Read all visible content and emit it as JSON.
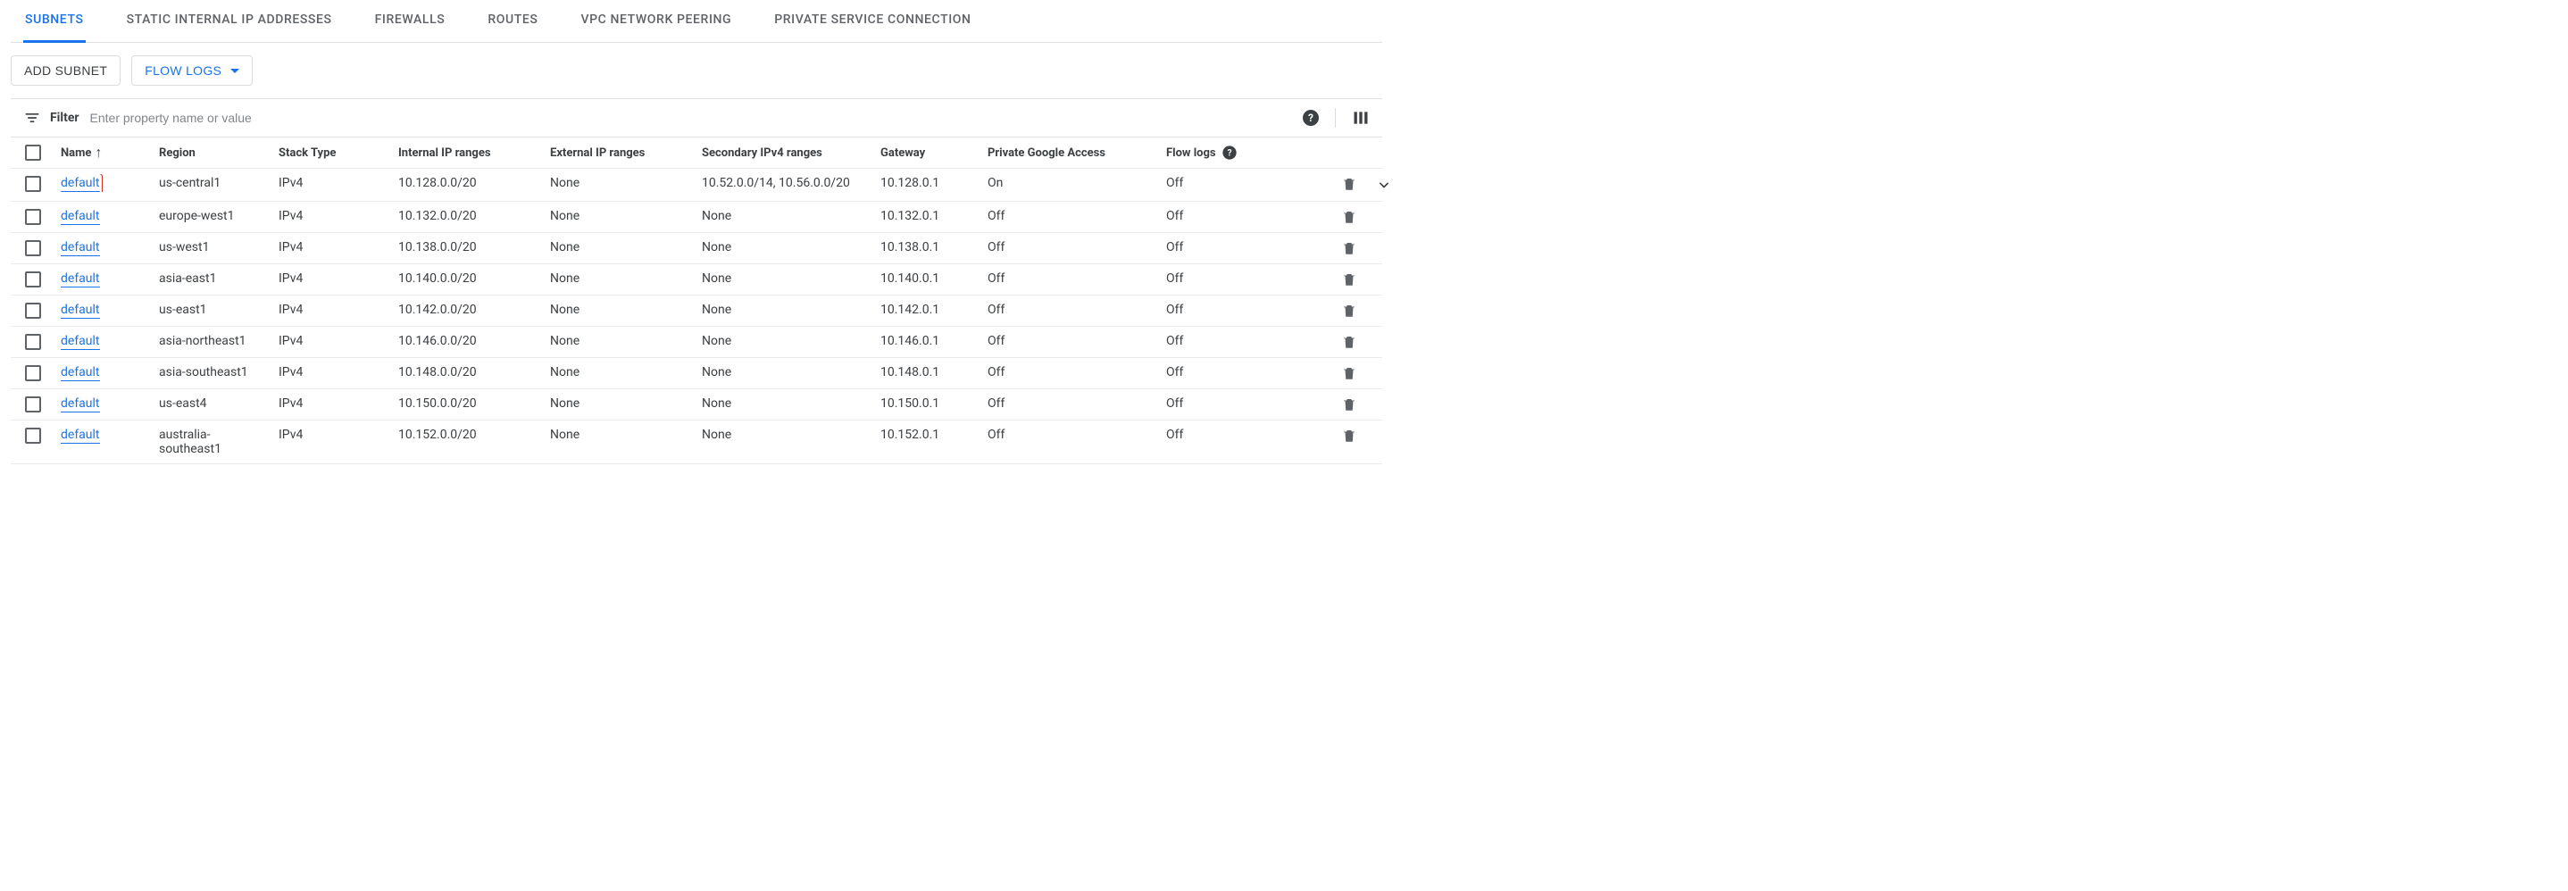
{
  "colors": {
    "accent": "#1a73e8",
    "text": "#3c4043",
    "muted": "#5f6368",
    "border": "#e0e0e0",
    "highlight_outline": "#d93025"
  },
  "tabs": [
    {
      "label": "SUBNETS",
      "active": true
    },
    {
      "label": "STATIC INTERNAL IP ADDRESSES",
      "active": false
    },
    {
      "label": "FIREWALLS",
      "active": false
    },
    {
      "label": "ROUTES",
      "active": false
    },
    {
      "label": "VPC NETWORK PEERING",
      "active": false
    },
    {
      "label": "PRIVATE SERVICE CONNECTION",
      "active": false
    }
  ],
  "toolbar": {
    "add_subnet_label": "ADD SUBNET",
    "flow_logs_label": "FLOW LOGS"
  },
  "filter": {
    "label": "Filter",
    "placeholder": "Enter property name or value"
  },
  "table": {
    "columns": {
      "name": "Name",
      "region": "Region",
      "stack_type": "Stack Type",
      "internal_ip": "Internal IP ranges",
      "external_ip": "External IP ranges",
      "secondary_ipv4": "Secondary IPv4 ranges",
      "gateway": "Gateway",
      "pga": "Private Google Access",
      "flow_logs": "Flow logs"
    },
    "rows": [
      {
        "name": "default",
        "region": "us-central1",
        "stack_type": "IPv4",
        "internal_ip": "10.128.0.0/20",
        "external_ip": "None",
        "secondary_ipv4": "10.52.0.0/14, 10.56.0.0/20",
        "gateway": "10.128.0.1",
        "pga": "On",
        "flow_logs": "Off",
        "highlighted": true,
        "expandable": true
      },
      {
        "name": "default",
        "region": "europe-west1",
        "stack_type": "IPv4",
        "internal_ip": "10.132.0.0/20",
        "external_ip": "None",
        "secondary_ipv4": "None",
        "gateway": "10.132.0.1",
        "pga": "Off",
        "flow_logs": "Off",
        "highlighted": false,
        "expandable": false
      },
      {
        "name": "default",
        "region": "us-west1",
        "stack_type": "IPv4",
        "internal_ip": "10.138.0.0/20",
        "external_ip": "None",
        "secondary_ipv4": "None",
        "gateway": "10.138.0.1",
        "pga": "Off",
        "flow_logs": "Off",
        "highlighted": false,
        "expandable": false
      },
      {
        "name": "default",
        "region": "asia-east1",
        "stack_type": "IPv4",
        "internal_ip": "10.140.0.0/20",
        "external_ip": "None",
        "secondary_ipv4": "None",
        "gateway": "10.140.0.1",
        "pga": "Off",
        "flow_logs": "Off",
        "highlighted": false,
        "expandable": false
      },
      {
        "name": "default",
        "region": "us-east1",
        "stack_type": "IPv4",
        "internal_ip": "10.142.0.0/20",
        "external_ip": "None",
        "secondary_ipv4": "None",
        "gateway": "10.142.0.1",
        "pga": "Off",
        "flow_logs": "Off",
        "highlighted": false,
        "expandable": false
      },
      {
        "name": "default",
        "region": "asia-northeast1",
        "stack_type": "IPv4",
        "internal_ip": "10.146.0.0/20",
        "external_ip": "None",
        "secondary_ipv4": "None",
        "gateway": "10.146.0.1",
        "pga": "Off",
        "flow_logs": "Off",
        "highlighted": false,
        "expandable": false
      },
      {
        "name": "default",
        "region": "asia-southeast1",
        "stack_type": "IPv4",
        "internal_ip": "10.148.0.0/20",
        "external_ip": "None",
        "secondary_ipv4": "None",
        "gateway": "10.148.0.1",
        "pga": "Off",
        "flow_logs": "Off",
        "highlighted": false,
        "expandable": false
      },
      {
        "name": "default",
        "region": "us-east4",
        "stack_type": "IPv4",
        "internal_ip": "10.150.0.0/20",
        "external_ip": "None",
        "secondary_ipv4": "None",
        "gateway": "10.150.0.1",
        "pga": "Off",
        "flow_logs": "Off",
        "highlighted": false,
        "expandable": false
      },
      {
        "name": "default",
        "region": "australia-southeast1",
        "stack_type": "IPv4",
        "internal_ip": "10.152.0.0/20",
        "external_ip": "None",
        "secondary_ipv4": "None",
        "gateway": "10.152.0.1",
        "pga": "Off",
        "flow_logs": "Off",
        "highlighted": false,
        "expandable": false
      }
    ]
  }
}
